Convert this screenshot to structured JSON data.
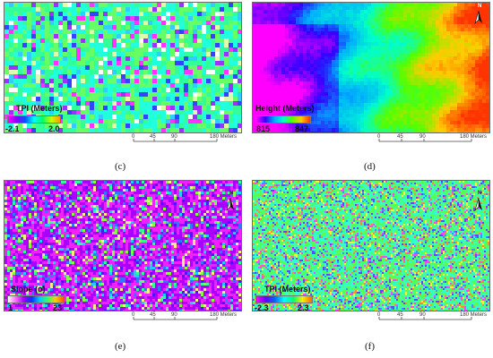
{
  "panels": [
    {
      "id": "c",
      "label": "(c)",
      "legend": {
        "title": "TPI (Meters)",
        "min": "-2.1",
        "max": "2.0",
        "gradient": [
          "#ff00ff",
          "#8800ff",
          "#0055ff",
          "#00ffff",
          "#00ff66",
          "#ccff00",
          "#ff9900"
        ]
      },
      "scale": {
        "ticks": [
          "0",
          "45",
          "90",
          "180 Meters"
        ]
      },
      "north_arrow": false,
      "palette": [
        "#ff33ff",
        "#9933ff",
        "#3344ff",
        "#33ccff",
        "#22ffdd",
        "#66ff66",
        "#33ff99",
        "#ddffaa",
        "#ffffff"
      ],
      "dominant": [
        "#33ff99",
        "#66ff66",
        "#22ffdd"
      ]
    },
    {
      "id": "d",
      "label": "(d)",
      "legend": {
        "title": "Height (Meters)",
        "min": "815",
        "max": "847",
        "gradient": [
          "#ff00ff",
          "#3300ff",
          "#00aaff",
          "#00ffcc",
          "#55ff00",
          "#ffcc00",
          "#ff3300"
        ]
      },
      "scale": {
        "ticks": [
          "0",
          "45",
          "90",
          "180 Meters"
        ]
      },
      "north_arrow": true,
      "north_label": "N"
    },
    {
      "id": "e",
      "label": "(e)",
      "legend": {
        "title": "Slope (o)",
        "min": "1",
        "max": "23",
        "gradient": [
          "#ffffff",
          "#ff66ff",
          "#9900ff",
          "#0033ff",
          "#00ccff",
          "#33ff66",
          "#ffcc00",
          "#ff5500"
        ]
      },
      "scale": {
        "ticks": [
          "0",
          "45",
          "90",
          "180 Meters"
        ]
      },
      "north_arrow": true,
      "north_label": "N",
      "palette": [
        "#ee22ff",
        "#aa00ff",
        "#5511ff",
        "#3377ff",
        "#22ccff",
        "#33ff99",
        "#88ff44",
        "#ffee88"
      ],
      "dominant": [
        "#aa00ff",
        "#ee22ff"
      ]
    },
    {
      "id": "f",
      "label": "(f)",
      "legend": {
        "title": "TPI (Meters)",
        "min": "-2.3",
        "max": "2.3",
        "gradient": [
          "#ff00ff",
          "#6600ff",
          "#0066ff",
          "#00ffff",
          "#00ff66",
          "#ffee00",
          "#ff6600"
        ]
      },
      "scale": {
        "ticks": [
          "0",
          "45",
          "90",
          "180 Meters"
        ]
      },
      "north_arrow": true,
      "north_label": "N",
      "palette": [
        "#ff44ff",
        "#6644ff",
        "#3399ff",
        "#33ffcc",
        "#55ff55",
        "#ffee33",
        "#ff8833"
      ],
      "dominant": [
        "#55ff55",
        "#33ffcc"
      ]
    }
  ]
}
